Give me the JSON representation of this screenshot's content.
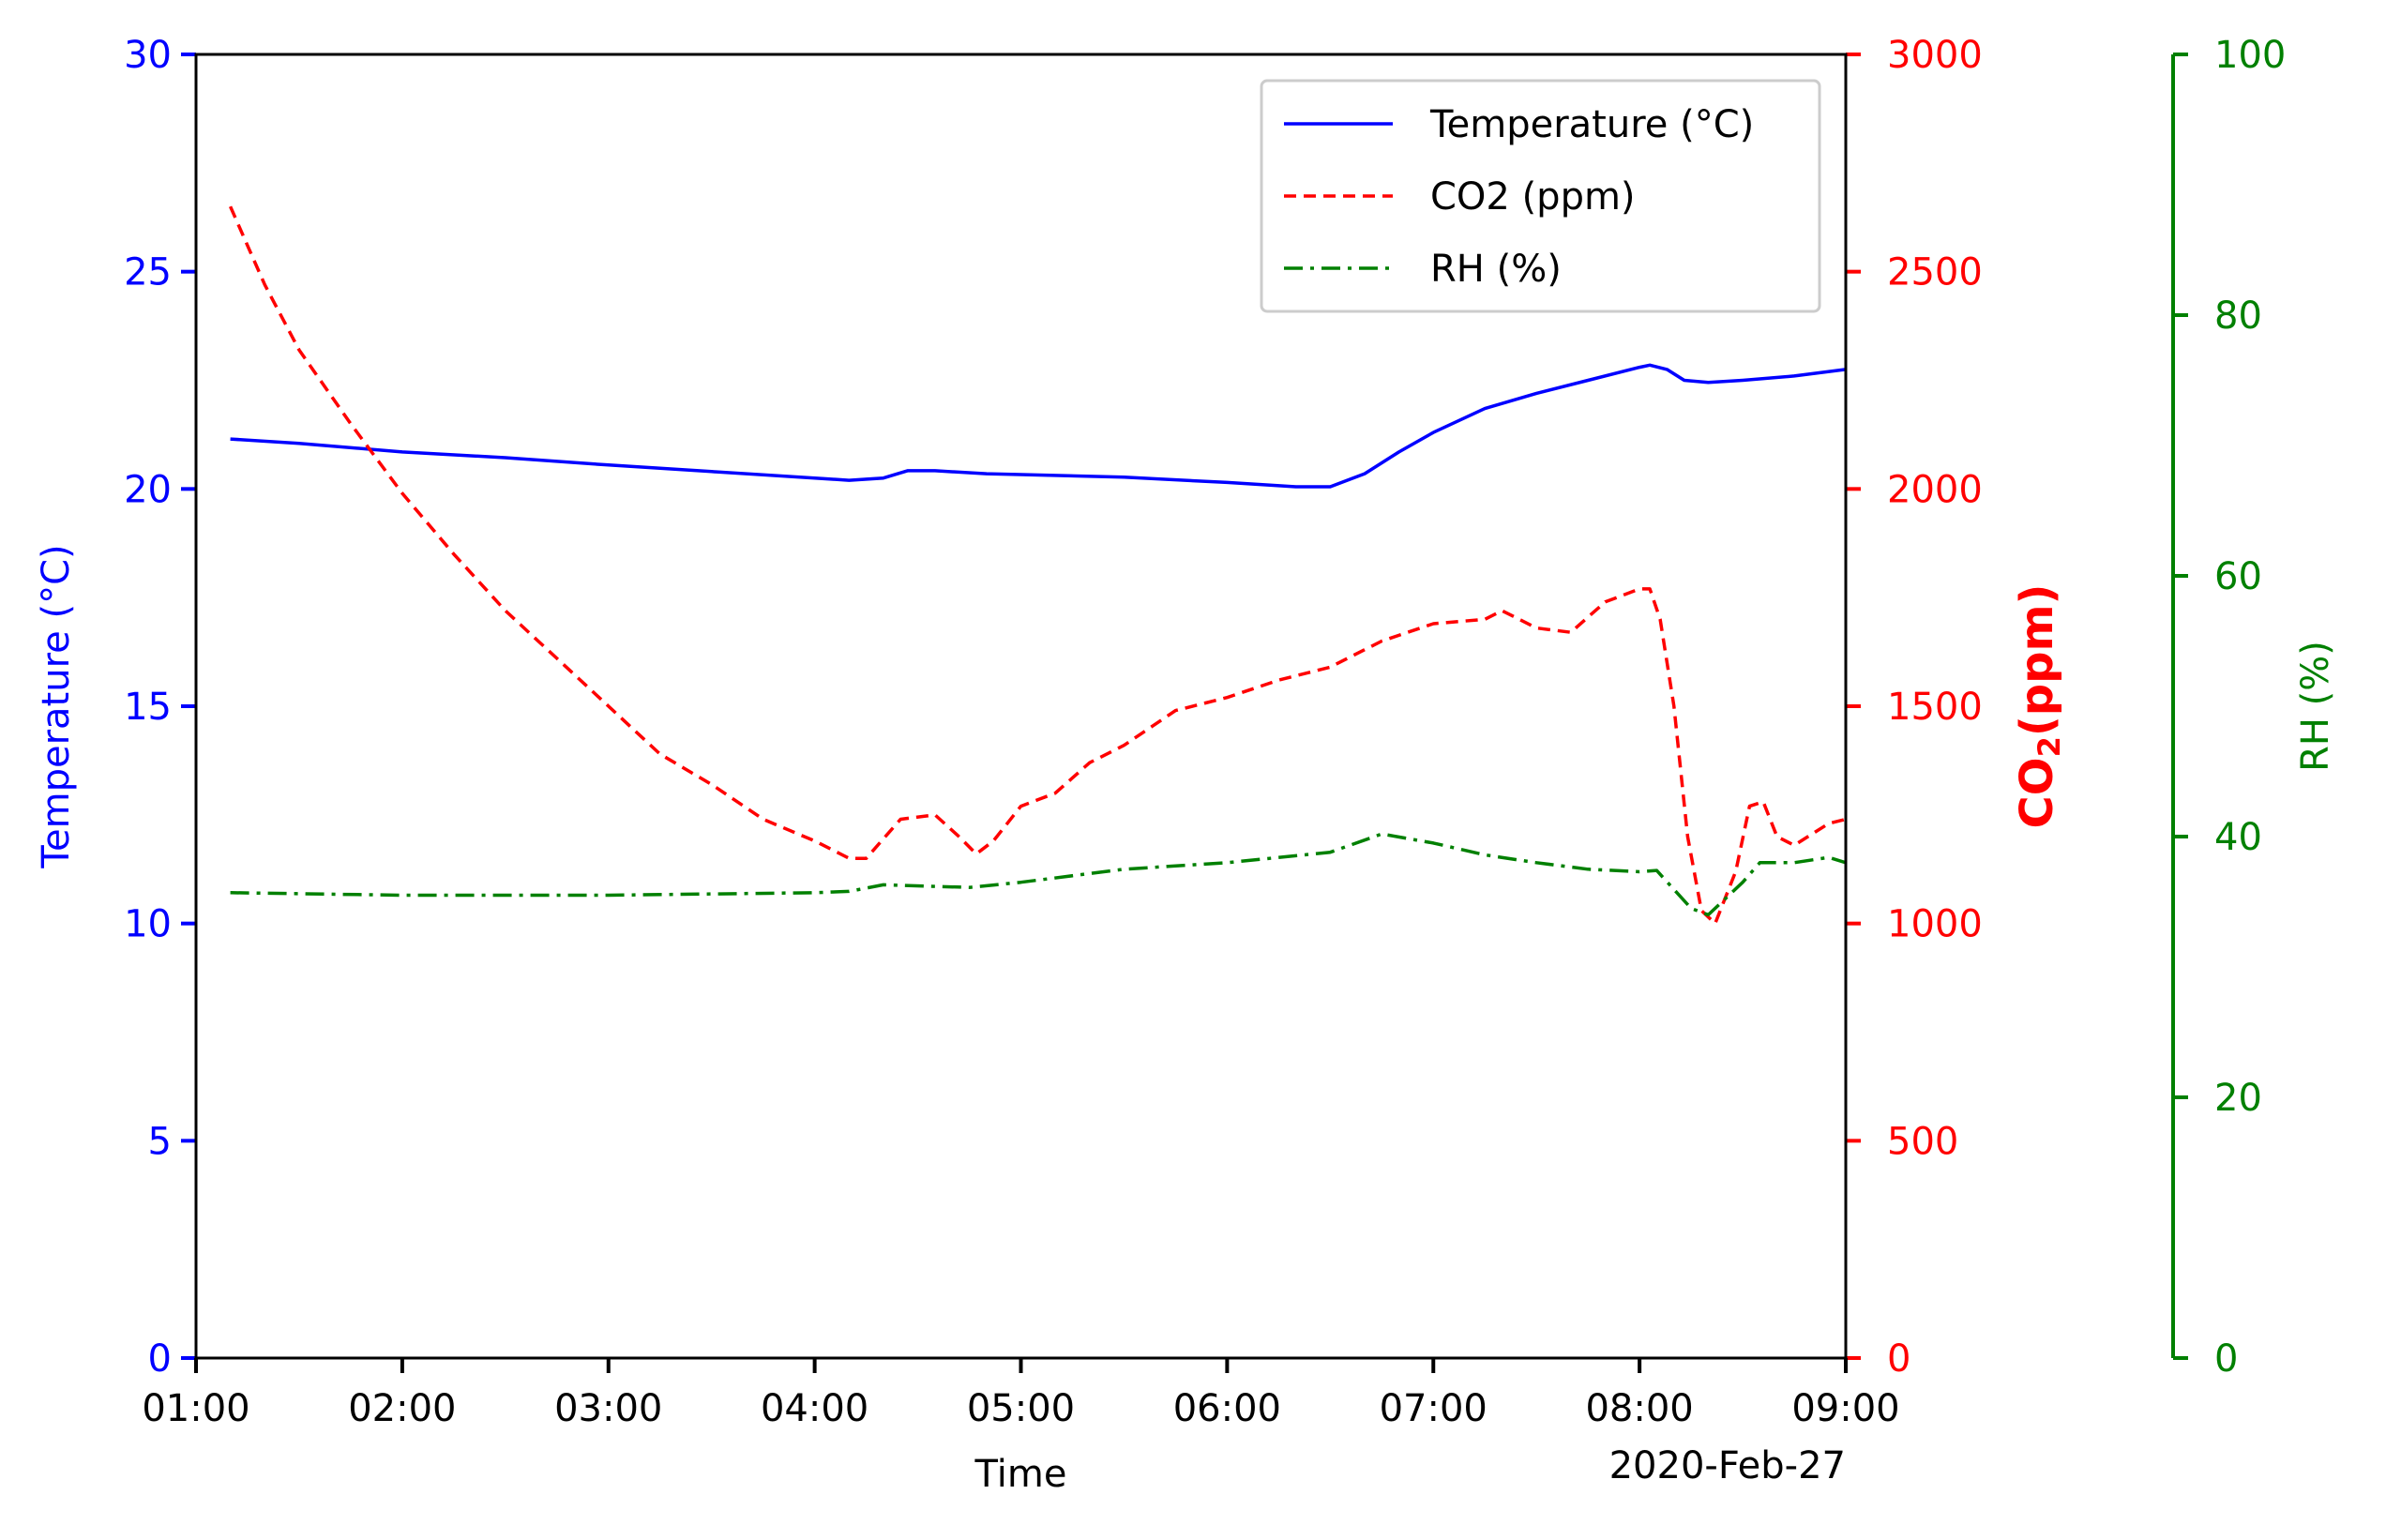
{
  "chart_data": {
    "type": "line",
    "xlabel": "Time",
    "x_offset_label": "2020-Feb-27",
    "x_ticks": [
      "01:00",
      "02:00",
      "03:00",
      "04:00",
      "05:00",
      "06:00",
      "07:00",
      "08:00",
      "09:00"
    ],
    "xlim": [
      "01:00",
      "09:00"
    ],
    "grid": false,
    "legend_position": "top-right",
    "axes": {
      "left": {
        "label": "Temperature (°C)",
        "ylim": [
          0,
          30
        ],
        "ticks": [
          "0",
          "5",
          "10",
          "15",
          "20",
          "25",
          "30"
        ],
        "color": "#0000ff"
      },
      "right": {
        "label_main": "CO",
        "label_sub": "2",
        "label_tail": "(ppm)",
        "ylim": [
          0,
          3000
        ],
        "ticks": [
          "0",
          "500",
          "1000",
          "1500",
          "2000",
          "2500",
          "3000"
        ],
        "color": "#ff0000"
      },
      "far_right": {
        "label": "RH (%)",
        "ylim": [
          0,
          100
        ],
        "ticks": [
          "0",
          "20",
          "40",
          "60",
          "80",
          "100"
        ],
        "color": "#008000"
      }
    },
    "series": [
      {
        "name": "Temperature (°C)",
        "axis": "left",
        "color": "#0000ff",
        "style": "solid",
        "points": [
          [
            "01:10",
            21.15
          ],
          [
            "01:30",
            21.05
          ],
          [
            "02:00",
            20.85
          ],
          [
            "02:30",
            20.72
          ],
          [
            "03:00",
            20.55
          ],
          [
            "03:30",
            20.4
          ],
          [
            "04:00",
            20.25
          ],
          [
            "04:10",
            20.2
          ],
          [
            "04:20",
            20.25
          ],
          [
            "04:27",
            20.42
          ],
          [
            "04:35",
            20.42
          ],
          [
            "04:50",
            20.35
          ],
          [
            "05:00",
            20.33
          ],
          [
            "05:30",
            20.27
          ],
          [
            "06:00",
            20.15
          ],
          [
            "06:20",
            20.05
          ],
          [
            "06:30",
            20.05
          ],
          [
            "06:40",
            20.35
          ],
          [
            "06:50",
            20.85
          ],
          [
            "07:00",
            21.3
          ],
          [
            "07:15",
            21.85
          ],
          [
            "07:30",
            22.2
          ],
          [
            "07:45",
            22.5
          ],
          [
            "08:00",
            22.8
          ],
          [
            "08:03",
            22.85
          ],
          [
            "08:08",
            22.75
          ],
          [
            "08:13",
            22.5
          ],
          [
            "08:20",
            22.45
          ],
          [
            "08:30",
            22.5
          ],
          [
            "08:45",
            22.6
          ],
          [
            "09:00",
            22.75
          ]
        ]
      },
      {
        "name": "CO2 (ppm)",
        "axis": "right",
        "color": "#ff0000",
        "style": "dashed",
        "points": [
          [
            "01:10",
            2650
          ],
          [
            "01:20",
            2470
          ],
          [
            "01:30",
            2320
          ],
          [
            "01:45",
            2150
          ],
          [
            "02:00",
            1990
          ],
          [
            "02:15",
            1850
          ],
          [
            "02:30",
            1720
          ],
          [
            "02:45",
            1610
          ],
          [
            "03:00",
            1500
          ],
          [
            "03:15",
            1390
          ],
          [
            "03:30",
            1320
          ],
          [
            "03:45",
            1240
          ],
          [
            "04:00",
            1190
          ],
          [
            "04:10",
            1150
          ],
          [
            "04:15",
            1150
          ],
          [
            "04:25",
            1240
          ],
          [
            "04:35",
            1250
          ],
          [
            "04:42",
            1200
          ],
          [
            "04:47",
            1160
          ],
          [
            "04:52",
            1190
          ],
          [
            "05:00",
            1270
          ],
          [
            "05:10",
            1300
          ],
          [
            "05:20",
            1370
          ],
          [
            "05:30",
            1410
          ],
          [
            "05:45",
            1490
          ],
          [
            "06:00",
            1520
          ],
          [
            "06:15",
            1560
          ],
          [
            "06:30",
            1590
          ],
          [
            "06:45",
            1650
          ],
          [
            "07:00",
            1690
          ],
          [
            "07:15",
            1700
          ],
          [
            "07:20",
            1720
          ],
          [
            "07:30",
            1680
          ],
          [
            "07:40",
            1670
          ],
          [
            "07:50",
            1740
          ],
          [
            "08:00",
            1770
          ],
          [
            "08:03",
            1770
          ],
          [
            "08:06",
            1700
          ],
          [
            "08:10",
            1500
          ],
          [
            "08:14",
            1200
          ],
          [
            "08:18",
            1030
          ],
          [
            "08:22",
            1000
          ],
          [
            "08:28",
            1120
          ],
          [
            "08:32",
            1270
          ],
          [
            "08:36",
            1280
          ],
          [
            "08:40",
            1200
          ],
          [
            "08:45",
            1180
          ],
          [
            "08:55",
            1230
          ],
          [
            "09:00",
            1240
          ]
        ]
      },
      {
        "name": "RH (%)",
        "axis": "far_right",
        "color": "#008000",
        "style": "dashdot",
        "points": [
          [
            "01:10",
            35.7
          ],
          [
            "02:00",
            35.5
          ],
          [
            "03:00",
            35.5
          ],
          [
            "04:00",
            35.7
          ],
          [
            "04:10",
            35.8
          ],
          [
            "04:20",
            36.3
          ],
          [
            "04:45",
            36.1
          ],
          [
            "05:00",
            36.5
          ],
          [
            "05:30",
            37.5
          ],
          [
            "06:00",
            38.0
          ],
          [
            "06:30",
            38.8
          ],
          [
            "06:45",
            40.2
          ],
          [
            "07:00",
            39.5
          ],
          [
            "07:15",
            38.6
          ],
          [
            "07:30",
            38.0
          ],
          [
            "07:45",
            37.5
          ],
          [
            "08:00",
            37.3
          ],
          [
            "08:05",
            37.4
          ],
          [
            "08:15",
            34.5
          ],
          [
            "08:20",
            34.0
          ],
          [
            "08:30",
            36.5
          ],
          [
            "08:35",
            38.0
          ],
          [
            "08:45",
            38.0
          ],
          [
            "08:55",
            38.4
          ],
          [
            "09:00",
            38.0
          ]
        ]
      }
    ]
  }
}
